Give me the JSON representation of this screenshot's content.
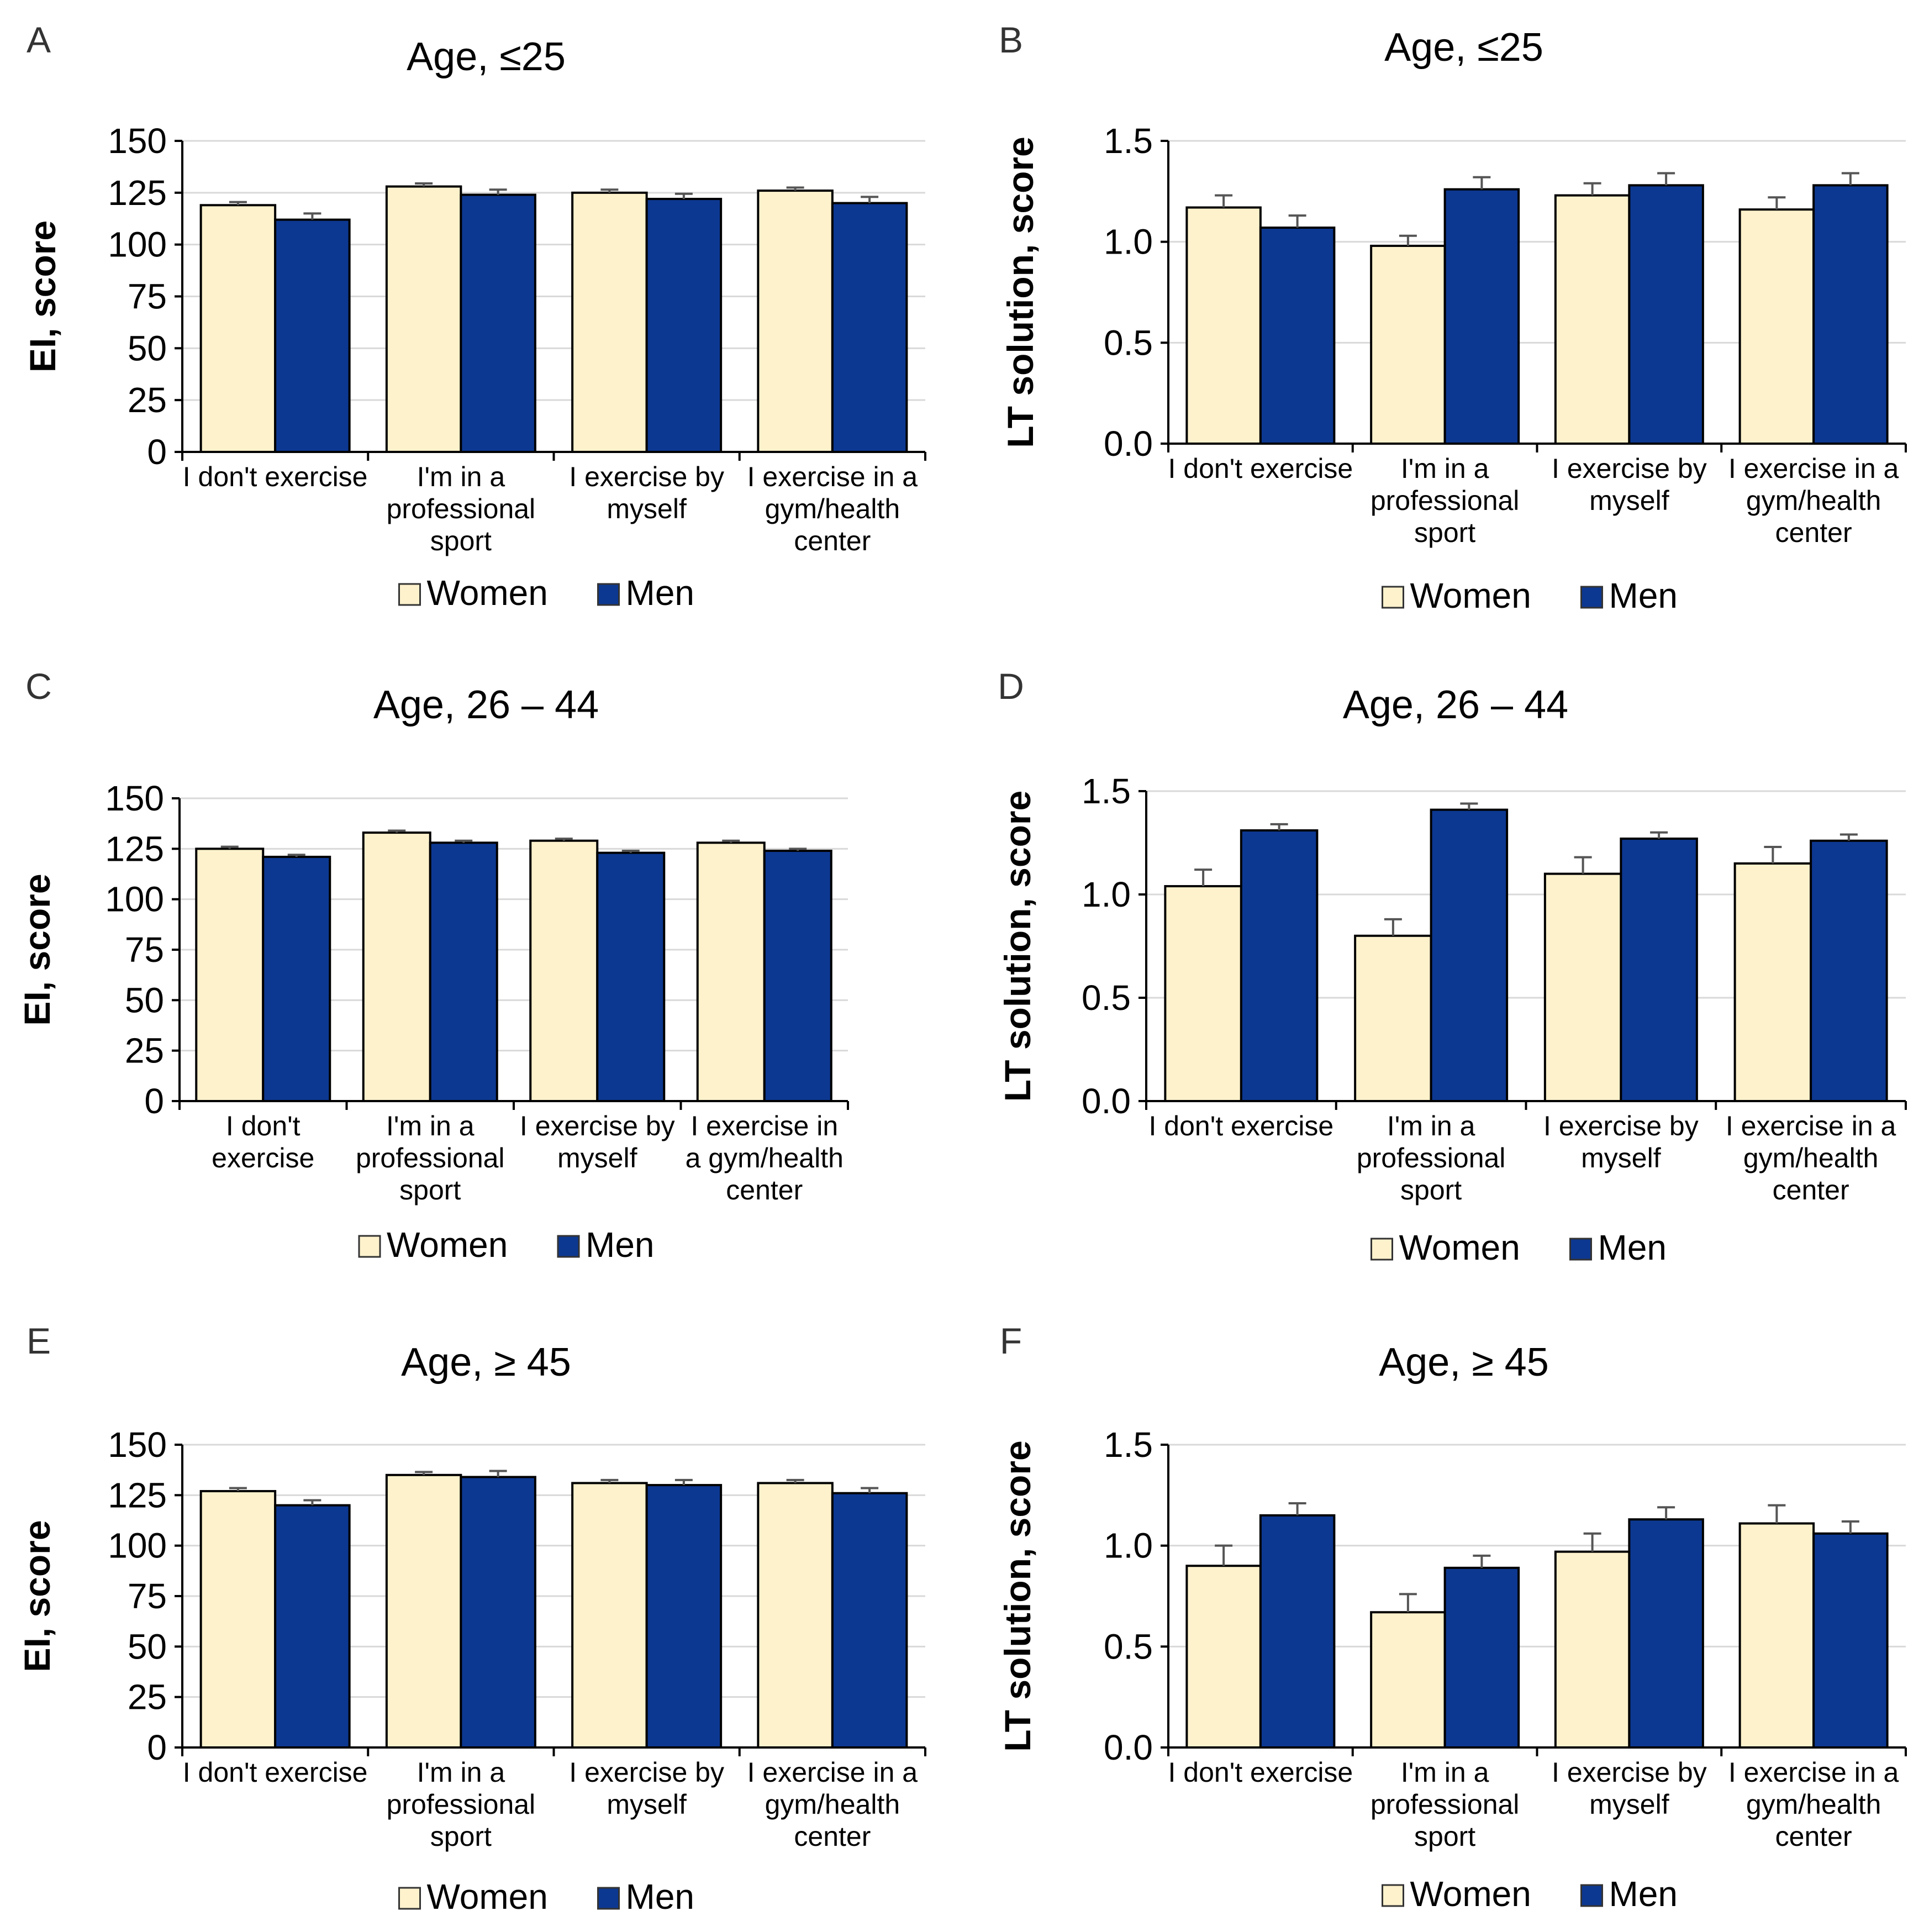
{
  "colors": {
    "women": "#fdf2cc",
    "men": "#0d3891",
    "bar_stroke": "#000000",
    "error_bar": "#555555",
    "grid": "#d9d9d9",
    "axis": "#000000",
    "text": "#000000"
  },
  "legend": {
    "women": "Women",
    "men": "Men"
  },
  "chart_data": [
    {
      "panel": "A",
      "type": "bar",
      "title": "Age, ≤25",
      "ylabel": "EI, score",
      "xlabel": "",
      "ylim": [
        0,
        150
      ],
      "yticks": [
        "0",
        "25",
        "50",
        "75",
        "100",
        "125",
        "150"
      ],
      "grid": true,
      "legend_position": "bottom",
      "categories": [
        [
          "I don't exercise"
        ],
        [
          "I'm in a",
          "professional",
          "sport"
        ],
        [
          "I exercise by",
          "myself"
        ],
        [
          "I exercise in a",
          "gym/health",
          "center"
        ]
      ],
      "series": [
        {
          "name": "Women",
          "values": [
            119,
            128,
            125,
            126
          ],
          "errors": [
            1.5,
            1.5,
            1.5,
            1.5
          ]
        },
        {
          "name": "Men",
          "values": [
            112,
            124,
            122,
            120
          ],
          "errors": [
            3,
            2.5,
            2.5,
            3
          ]
        }
      ]
    },
    {
      "panel": "B",
      "type": "bar",
      "title": "Age, ≤25",
      "ylabel": "LT solution, score",
      "xlabel": "",
      "ylim": [
        0,
        1.5
      ],
      "yticks": [
        "0.0",
        "0.5",
        "1.0",
        "1.5"
      ],
      "grid": true,
      "legend_position": "bottom",
      "categories": [
        [
          "I don't exercise"
        ],
        [
          "I'm in a",
          "professional",
          "sport"
        ],
        [
          "I exercise by",
          "myself"
        ],
        [
          "I exercise in a",
          "gym/health",
          "center"
        ]
      ],
      "series": [
        {
          "name": "Women",
          "values": [
            1.17,
            0.98,
            1.23,
            1.16
          ],
          "errors": [
            0.06,
            0.05,
            0.06,
            0.06
          ]
        },
        {
          "name": "Men",
          "values": [
            1.07,
            1.26,
            1.28,
            1.28
          ],
          "errors": [
            0.06,
            0.06,
            0.06,
            0.06
          ]
        }
      ]
    },
    {
      "panel": "C",
      "type": "bar",
      "title": "Age, 26 – 44",
      "ylabel": "EI, score",
      "xlabel": "",
      "ylim": [
        0,
        150
      ],
      "yticks": [
        "0",
        "25",
        "50",
        "75",
        "100",
        "125",
        "150"
      ],
      "grid": true,
      "legend_position": "bottom",
      "categories": [
        [
          "I don't",
          "exercise"
        ],
        [
          "I'm in a",
          "professional",
          "sport"
        ],
        [
          "I exercise by",
          "myself"
        ],
        [
          "I exercise in",
          "a gym/health",
          "center"
        ]
      ],
      "series": [
        {
          "name": "Women",
          "values": [
            125,
            133,
            129,
            128
          ],
          "errors": [
            1,
            1,
            1,
            1
          ]
        },
        {
          "name": "Men",
          "values": [
            121,
            128,
            123,
            124
          ],
          "errors": [
            1,
            1,
            1,
            1
          ]
        }
      ]
    },
    {
      "panel": "D",
      "type": "bar",
      "title": "Age, 26 – 44",
      "ylabel": "LT solution, score",
      "xlabel": "",
      "ylim": [
        0,
        1.5
      ],
      "yticks": [
        "0.0",
        "0.5",
        "1.0",
        "1.5"
      ],
      "grid": true,
      "legend_position": "bottom",
      "categories": [
        [
          "I don't exercise"
        ],
        [
          "I'm in a",
          "professional",
          "sport"
        ],
        [
          "I exercise by",
          "myself"
        ],
        [
          "I exercise in a",
          "gym/health",
          "center"
        ]
      ],
      "series": [
        {
          "name": "Women",
          "values": [
            1.04,
            0.8,
            1.1,
            1.15
          ],
          "errors": [
            0.08,
            0.08,
            0.08,
            0.08
          ]
        },
        {
          "name": "Men",
          "values": [
            1.31,
            1.41,
            1.27,
            1.26
          ],
          "errors": [
            0.03,
            0.03,
            0.03,
            0.03
          ]
        }
      ]
    },
    {
      "panel": "E",
      "type": "bar",
      "title": "Age, ≥ 45",
      "ylabel": "EI, score",
      "xlabel": "",
      "ylim": [
        0,
        150
      ],
      "yticks": [
        "0",
        "25",
        "50",
        "75",
        "100",
        "125",
        "150"
      ],
      "grid": true,
      "legend_position": "bottom",
      "categories": [
        [
          "I don't exercise"
        ],
        [
          "I'm in a",
          "professional",
          "sport"
        ],
        [
          "I exercise by",
          "myself"
        ],
        [
          "I exercise in a",
          "gym/health",
          "center"
        ]
      ],
      "series": [
        {
          "name": "Women",
          "values": [
            127,
            135,
            131,
            131
          ],
          "errors": [
            1.5,
            1.5,
            1.5,
            1.5
          ]
        },
        {
          "name": "Men",
          "values": [
            120,
            134,
            130,
            126
          ],
          "errors": [
            2.5,
            3,
            2.5,
            2.5
          ]
        }
      ]
    },
    {
      "panel": "F",
      "type": "bar",
      "title": "Age, ≥ 45",
      "ylabel": "LT solution, score",
      "xlabel": "",
      "ylim": [
        0,
        1.5
      ],
      "yticks": [
        "0.0",
        "0.5",
        "1.0",
        "1.5"
      ],
      "grid": true,
      "legend_position": "bottom",
      "categories": [
        [
          "I don't exercise"
        ],
        [
          "I'm in a",
          "professional",
          "sport"
        ],
        [
          "I exercise by",
          "myself"
        ],
        [
          "I exercise in a",
          "gym/health",
          "center"
        ]
      ],
      "series": [
        {
          "name": "Women",
          "values": [
            0.9,
            0.67,
            0.97,
            1.11
          ],
          "errors": [
            0.1,
            0.09,
            0.09,
            0.09
          ]
        },
        {
          "name": "Men",
          "values": [
            1.15,
            0.89,
            1.13,
            1.06
          ],
          "errors": [
            0.06,
            0.06,
            0.06,
            0.06
          ]
        }
      ]
    }
  ]
}
